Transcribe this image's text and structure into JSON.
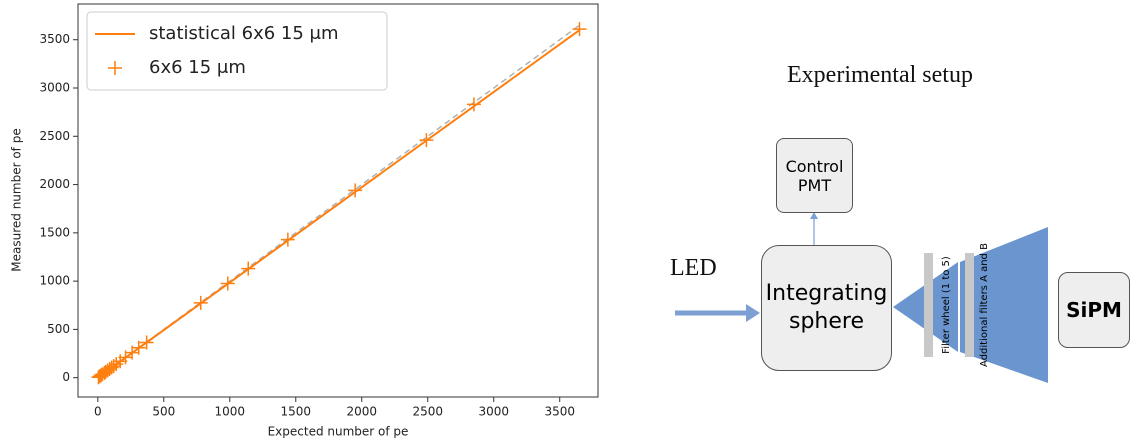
{
  "chart_data": {
    "type": "scatter",
    "xlabel": "Expected number of pe",
    "ylabel": "Measured number of pe",
    "xlim": [
      -150,
      3790
    ],
    "ylim": [
      -200,
      3870
    ],
    "xticks": [
      0,
      500,
      1000,
      1500,
      2000,
      2500,
      3000,
      3500
    ],
    "yticks": [
      0,
      500,
      1000,
      1500,
      2000,
      2500,
      3000,
      3500
    ],
    "legend": "upper left",
    "reference_line": {
      "x": [
        0,
        3650
      ],
      "values": [
        0,
        3650
      ],
      "color": "#b0b0b0"
    },
    "series": [
      {
        "name": "statistical 6x6 15 μm",
        "type": "line",
        "color": "#ff7f0e",
        "x": [
          0,
          3650
        ],
        "values": [
          0,
          3600
        ]
      },
      {
        "name": "6x6 15 μm",
        "type": "scatter",
        "marker": "+",
        "color": "#ff7f0e",
        "x": [
          5,
          15,
          25,
          35,
          50,
          60,
          75,
          90,
          105,
          120,
          140,
          170,
          210,
          260,
          310,
          370,
          780,
          985,
          1140,
          1440,
          1950,
          2490,
          2850,
          3650
        ],
        "values": [
          5,
          15,
          25,
          35,
          50,
          60,
          75,
          90,
          105,
          120,
          140,
          170,
          210,
          260,
          310,
          365,
          775,
          975,
          1130,
          1430,
          1940,
          2460,
          2830,
          3610
        ]
      }
    ]
  },
  "diagram": {
    "title": "Experimental setup",
    "control": "Control PMT",
    "led": "LED",
    "sphere": "Integrating sphere",
    "filter_wheel": "Filter wheel (1 to 5)",
    "additional_filters": "Additional filters A and B",
    "sipm": "SiPM"
  }
}
